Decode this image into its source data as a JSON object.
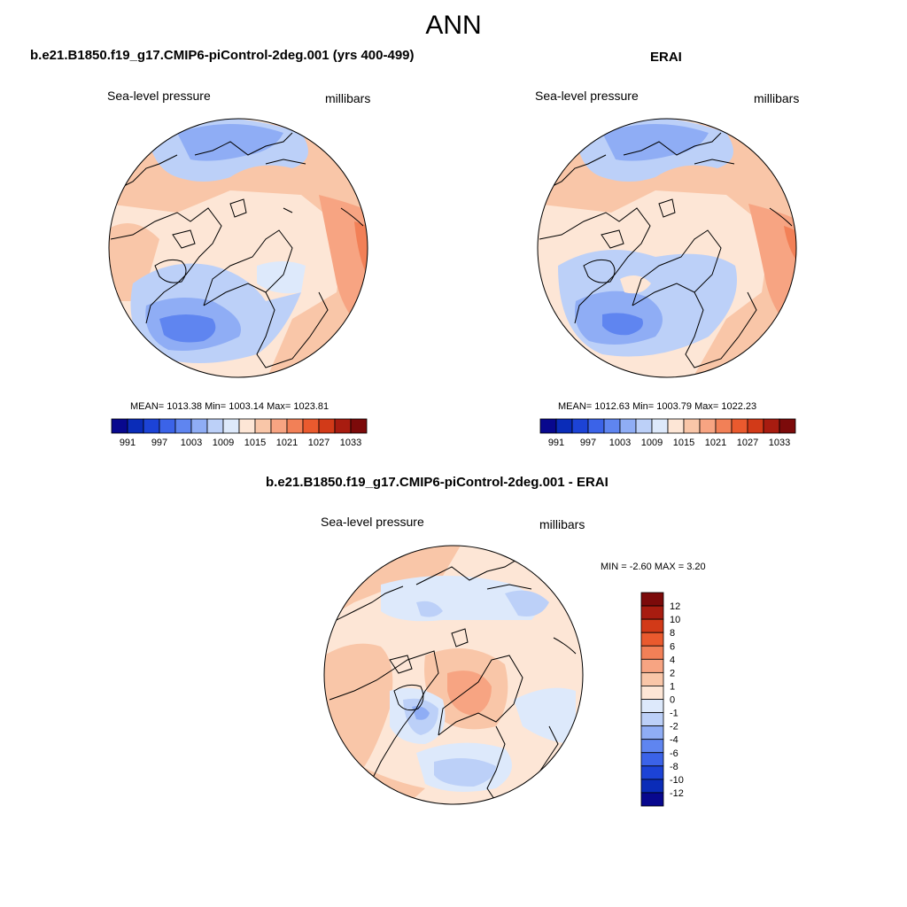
{
  "page": {
    "title": "ANN"
  },
  "panels": [
    {
      "id": "model",
      "title": "b.e21.B1850.f19_g17.CMIP6-piControl-2deg.001 (yrs 400-499)",
      "left_label": "Sea-level pressure",
      "right_label": "millibars",
      "stats": "MEAN= 1013.38  Min= 1003.14  Max= 1023.81"
    },
    {
      "id": "obs",
      "title": "ERAI",
      "left_label": "Sea-level pressure",
      "right_label": "millibars",
      "stats": "MEAN= 1012.63  Min= 1003.79  Max= 1022.23"
    },
    {
      "id": "diff",
      "title": "b.e21.B1850.f19_g17.CMIP6-piControl-2deg.001 - ERAI",
      "left_label": "Sea-level pressure",
      "right_label": "millibars",
      "stats": "MIN =  -2.60 MAX =   3.20"
    }
  ],
  "chart_data": [
    {
      "type": "heatmap",
      "projection": "polar stereographic, north pole",
      "field": "Sea-level pressure",
      "units": "millibars",
      "mean": 1013.38,
      "min": 1003.14,
      "max": 1023.81,
      "colorbar": {
        "orientation": "horizontal",
        "levels": [
          991,
          994,
          997,
          1000,
          1003,
          1006,
          1009,
          1012,
          1015,
          1018,
          1021,
          1024,
          1027,
          1030,
          1033
        ],
        "labels": [
          "991",
          "997",
          "1003",
          "1009",
          "1015",
          "1021",
          "1027",
          "1033"
        ],
        "colors": [
          "#08088e",
          "#0a2cb8",
          "#1c43d6",
          "#3b63e8",
          "#5f85f0",
          "#8fadf5",
          "#bcd0f8",
          "#dde9fb",
          "#fde6d6",
          "#f9c6a8",
          "#f7a482",
          "#f28057",
          "#ea5a2e",
          "#d23a18",
          "#a81c10",
          "#7c0a0a"
        ]
      }
    },
    {
      "type": "heatmap",
      "projection": "polar stereographic, north pole",
      "field": "Sea-level pressure",
      "units": "millibars",
      "mean": 1012.63,
      "min": 1003.79,
      "max": 1022.23,
      "colorbar": {
        "orientation": "horizontal",
        "levels": [
          991,
          994,
          997,
          1000,
          1003,
          1006,
          1009,
          1012,
          1015,
          1018,
          1021,
          1024,
          1027,
          1030,
          1033
        ],
        "labels": [
          "991",
          "997",
          "1003",
          "1009",
          "1015",
          "1021",
          "1027",
          "1033"
        ],
        "colors": [
          "#08088e",
          "#0a2cb8",
          "#1c43d6",
          "#3b63e8",
          "#5f85f0",
          "#8fadf5",
          "#bcd0f8",
          "#dde9fb",
          "#fde6d6",
          "#f9c6a8",
          "#f7a482",
          "#f28057",
          "#ea5a2e",
          "#d23a18",
          "#a81c10",
          "#7c0a0a"
        ]
      }
    },
    {
      "type": "heatmap",
      "projection": "polar stereographic, north pole",
      "field": "Sea-level pressure difference",
      "units": "millibars",
      "min": -2.6,
      "max": 3.2,
      "colorbar": {
        "orientation": "vertical",
        "levels": [
          -12,
          -10,
          -8,
          -6,
          -4,
          -2,
          -1,
          0,
          1,
          2,
          4,
          6,
          8,
          10,
          12
        ],
        "labels": [
          "12",
          "10",
          "8",
          "6",
          "4",
          "2",
          "1",
          "0",
          "-1",
          "-2",
          "-4",
          "-6",
          "-8",
          "-10",
          "-12"
        ],
        "colors": [
          "#08088e",
          "#0a2cb8",
          "#1c43d6",
          "#3b63e8",
          "#5f85f0",
          "#8fadf5",
          "#bcd0f8",
          "#dde9fb",
          "#fde6d6",
          "#f9c6a8",
          "#f7a482",
          "#f28057",
          "#ea5a2e",
          "#d23a18",
          "#a81c10",
          "#7c0a0a"
        ]
      }
    }
  ]
}
